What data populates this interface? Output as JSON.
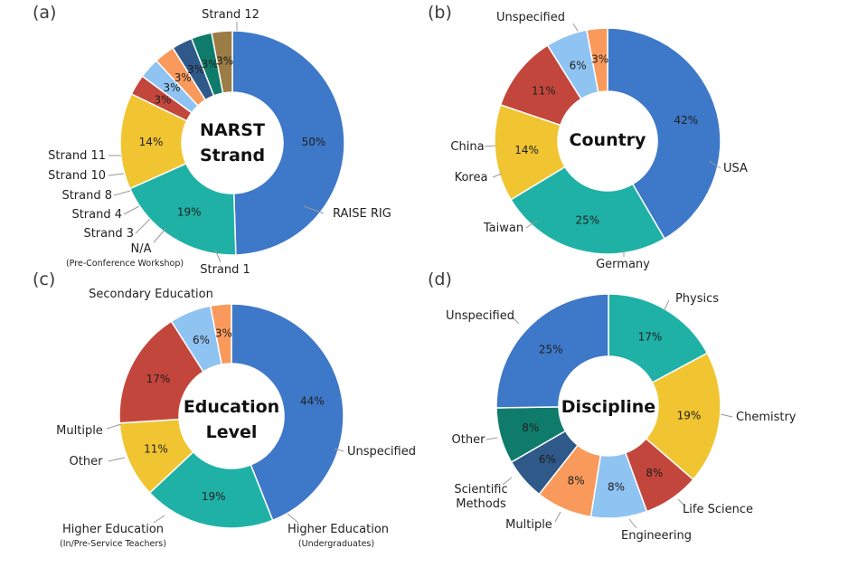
{
  "colors": {
    "blue": "#3E78C8",
    "teal": "#1FB1A6",
    "yellow": "#F0C531",
    "red": "#C3463C",
    "lightblue": "#8FC3F2",
    "orange": "#F99A5C",
    "navy": "#2E5989",
    "darkteal": "#0F7B6A",
    "olive": "#9A7C44"
  },
  "chart_data": [
    {
      "type": "pie",
      "panel": "(a)",
      "center_title": [
        "NARST",
        "Strand"
      ],
      "start_angle_deg": 0,
      "slices": [
        {
          "label": "Strand 12",
          "value": 50,
          "pct_text": "50%",
          "color": "blue"
        },
        {
          "label": "RAISE RIG",
          "value": 19,
          "pct_text": "19%",
          "color": "teal"
        },
        {
          "label": "Strand 1",
          "value": 14,
          "pct_text": "14%",
          "color": "yellow"
        },
        {
          "label": "N/A",
          "sublabel": "(Pre-Conference Workshop)",
          "value": 3,
          "pct_text": "3%",
          "color": "red"
        },
        {
          "label": "Strand 3",
          "value": 3,
          "pct_text": "3%",
          "color": "lightblue"
        },
        {
          "label": "Strand 4",
          "value": 3,
          "pct_text": "3%",
          "color": "orange"
        },
        {
          "label": "Strand 8",
          "value": 3,
          "pct_text": "3%",
          "color": "navy"
        },
        {
          "label": "Strand 10",
          "value": 3,
          "pct_text": "3%",
          "color": "darkteal"
        },
        {
          "label": "Strand 11",
          "value": 3,
          "pct_text": "3%",
          "color": "olive"
        }
      ]
    },
    {
      "type": "pie",
      "panel": "(b)",
      "center_title": [
        "Country"
      ],
      "start_angle_deg": 0,
      "slices": [
        {
          "label": "Unspecified",
          "value": 42,
          "pct_text": "42%",
          "color": "blue"
        },
        {
          "label": "USA",
          "value": 25,
          "pct_text": "25%",
          "color": "teal"
        },
        {
          "label": "Germany",
          "value": 14,
          "pct_text": "14%",
          "color": "yellow"
        },
        {
          "label": "Taiwan",
          "value": 11,
          "pct_text": "11%",
          "color": "red"
        },
        {
          "label": "Korea",
          "value": 6,
          "pct_text": "6%",
          "color": "lightblue"
        },
        {
          "label": "China",
          "value": 3,
          "pct_text": "3%",
          "color": "orange"
        }
      ]
    },
    {
      "type": "pie",
      "panel": "(c)",
      "center_title": [
        "Education",
        "Level"
      ],
      "start_angle_deg": 0,
      "slices": [
        {
          "label": "Secondary Education",
          "value": 44,
          "pct_text": "44%",
          "color": "blue"
        },
        {
          "label": "Unspecified",
          "value": 19,
          "pct_text": "19%",
          "color": "teal"
        },
        {
          "label": "Higher Education",
          "sublabel": "(Undergraduates)",
          "value": 11,
          "pct_text": "11%",
          "color": "yellow"
        },
        {
          "label": "Higher Education",
          "sublabel": "(In/Pre-Service Teachers)",
          "value": 17,
          "pct_text": "17%",
          "color": "red"
        },
        {
          "label": "Other",
          "value": 6,
          "pct_text": "6%",
          "color": "lightblue"
        },
        {
          "label": "Multiple",
          "value": 3,
          "pct_text": "3%",
          "color": "orange"
        }
      ]
    },
    {
      "type": "pie",
      "panel": "(d)",
      "center_title": [
        "Discipline"
      ],
      "start_angle_deg": 0,
      "slices": [
        {
          "label": "Physics",
          "value": 17,
          "pct_text": "17%",
          "color": "teal"
        },
        {
          "label": "Chemistry",
          "value": 19,
          "pct_text": "19%",
          "color": "yellow"
        },
        {
          "label": "Life Science",
          "value": 8,
          "pct_text": "8%",
          "color": "red"
        },
        {
          "label": "Engineering",
          "value": 8,
          "pct_text": "8%",
          "color": "lightblue"
        },
        {
          "label": "Multiple",
          "value": 8,
          "pct_text": "8%",
          "color": "orange"
        },
        {
          "label": "Scientific",
          "sublabel_line": "Methods",
          "value": 6,
          "pct_text": "6%",
          "color": "navy"
        },
        {
          "label": "Other",
          "value": 8,
          "pct_text": "8%",
          "color": "darkteal"
        },
        {
          "label": "Unspecified",
          "value": 25,
          "pct_text": "25%",
          "color": "blue"
        }
      ]
    }
  ]
}
